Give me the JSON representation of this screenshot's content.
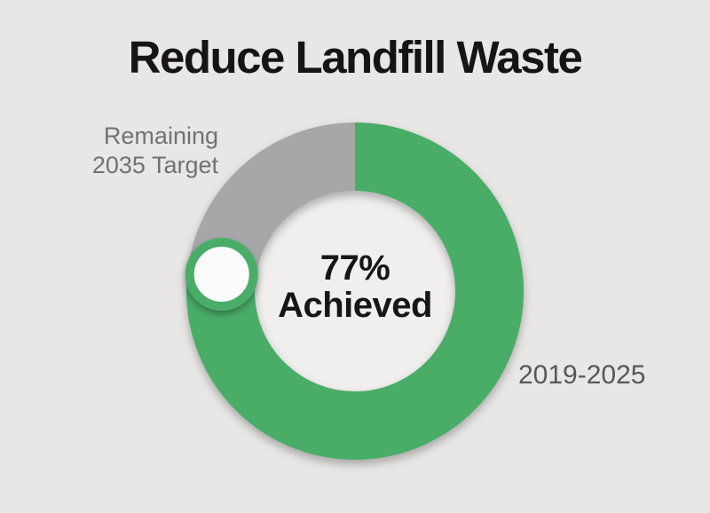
{
  "page": {
    "background": "#e8e7e5"
  },
  "chart_data": {
    "type": "pie",
    "subtype": "donut-progress",
    "title": "Reduce Landfill Waste",
    "center": {
      "value": "77%",
      "caption": "Achieved"
    },
    "series": [
      {
        "name": "2019-2025",
        "value": 77,
        "color": "#4aad68"
      },
      {
        "name": "Remaining 2035 Target",
        "value": 23,
        "color": "#a5a7a9"
      }
    ],
    "labels": {
      "remaining_lines": [
        "Remaining",
        "2035 Target"
      ],
      "achieved_period": "2019-2025"
    },
    "start_angle_deg": 0,
    "direction": "clockwise",
    "hole_fill": "#f0efee",
    "marker": {
      "at_percent": 77,
      "fill": "#fcfcfc",
      "ring_color": "#4aad68"
    },
    "legend_position": "side-labels",
    "grid": false
  }
}
